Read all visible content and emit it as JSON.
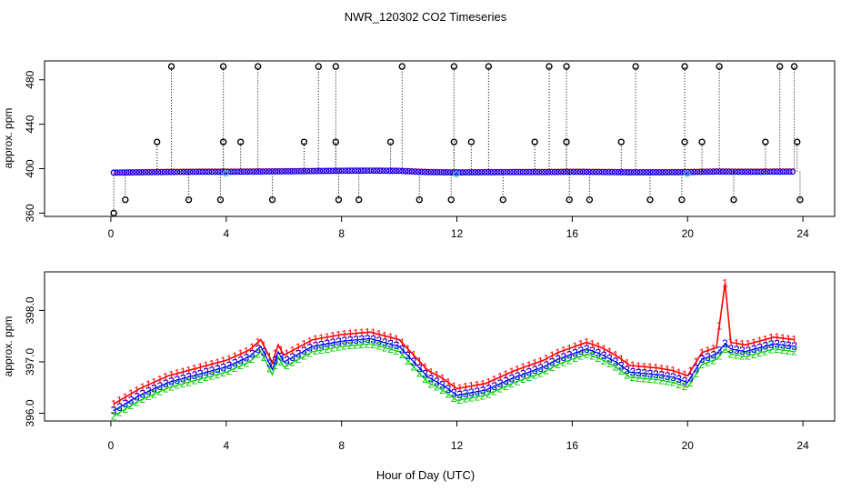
{
  "title": "NWR_120302  CO2 Timeseries",
  "xlabel": "Hour of Day (UTC)",
  "chart_data": [
    {
      "type": "scatter",
      "name": "top-panel",
      "ylabel": "approx. ppm",
      "xlim": [
        -2.3,
        25.1
      ],
      "ylim": [
        357,
        497
      ],
      "xticks": [
        0,
        4,
        8,
        12,
        16,
        20,
        24
      ],
      "yticks": [
        360,
        400,
        440,
        480
      ],
      "baseline_series": [
        {
          "name": "channel 1",
          "color": "#ff0000",
          "points": [
            [
              0.1,
              396.6
            ],
            [
              1.0,
              396.9
            ],
            [
              2.0,
              397.2
            ],
            [
              3.0,
              397.4
            ],
            [
              4.0,
              397.4
            ],
            [
              5.0,
              397.6
            ],
            [
              6.0,
              397.8
            ],
            [
              7.0,
              398.0
            ],
            [
              8.0,
              398.3
            ],
            [
              9.0,
              398.4
            ],
            [
              10.0,
              398.2
            ],
            [
              11.0,
              397.1
            ],
            [
              12.0,
              396.8
            ],
            [
              13.0,
              397.0
            ],
            [
              14.0,
              397.1
            ],
            [
              15.0,
              397.1
            ],
            [
              16.0,
              397.4
            ],
            [
              17.0,
              397.2
            ],
            [
              18.0,
              396.9
            ],
            [
              19.0,
              396.9
            ],
            [
              20.0,
              397.1
            ],
            [
              21.0,
              397.6
            ],
            [
              22.0,
              397.4
            ],
            [
              23.0,
              397.5
            ],
            [
              23.7,
              397.5
            ]
          ]
        },
        {
          "name": "channel 3",
          "color": "#0000ff",
          "points": [
            [
              0.1,
              396.3
            ],
            [
              1.0,
              396.6
            ],
            [
              2.0,
              396.9
            ],
            [
              3.0,
              397.1
            ],
            [
              4.0,
              397.1
            ],
            [
              5.0,
              397.3
            ],
            [
              6.0,
              397.5
            ],
            [
              7.0,
              397.7
            ],
            [
              8.0,
              398.0
            ],
            [
              9.0,
              398.1
            ],
            [
              10.0,
              397.9
            ],
            [
              11.0,
              396.8
            ],
            [
              12.0,
              396.5
            ],
            [
              13.0,
              396.7
            ],
            [
              14.0,
              396.8
            ],
            [
              15.0,
              396.8
            ],
            [
              16.0,
              397.1
            ],
            [
              17.0,
              396.9
            ],
            [
              18.0,
              396.6
            ],
            [
              19.0,
              396.6
            ],
            [
              20.0,
              396.8
            ],
            [
              21.0,
              397.3
            ],
            [
              22.0,
              397.1
            ],
            [
              23.0,
              397.2
            ],
            [
              23.7,
              397.2
            ]
          ]
        }
      ],
      "outliers": [
        {
          "x": 0.1,
          "y": 360
        },
        {
          "x": 0.5,
          "y": 372
        },
        {
          "x": 1.6,
          "y": 424
        },
        {
          "x": 2.1,
          "y": 492
        },
        {
          "x": 2.7,
          "y": 372
        },
        {
          "x": 3.8,
          "y": 372
        },
        {
          "x": 3.9,
          "y": 424
        },
        {
          "x": 3.9,
          "y": 492
        },
        {
          "x": 4.5,
          "y": 424
        },
        {
          "x": 5.1,
          "y": 492
        },
        {
          "x": 5.6,
          "y": 372
        },
        {
          "x": 6.7,
          "y": 424
        },
        {
          "x": 7.2,
          "y": 492
        },
        {
          "x": 7.8,
          "y": 492
        },
        {
          "x": 7.8,
          "y": 424
        },
        {
          "x": 7.9,
          "y": 372
        },
        {
          "x": 8.6,
          "y": 372
        },
        {
          "x": 9.7,
          "y": 424
        },
        {
          "x": 10.1,
          "y": 492
        },
        {
          "x": 10.7,
          "y": 372
        },
        {
          "x": 11.8,
          "y": 372
        },
        {
          "x": 11.9,
          "y": 424
        },
        {
          "x": 11.9,
          "y": 492
        },
        {
          "x": 12.5,
          "y": 424
        },
        {
          "x": 13.1,
          "y": 492
        },
        {
          "x": 13.6,
          "y": 372
        },
        {
          "x": 14.7,
          "y": 424
        },
        {
          "x": 15.2,
          "y": 492
        },
        {
          "x": 15.8,
          "y": 492
        },
        {
          "x": 15.8,
          "y": 424
        },
        {
          "x": 15.9,
          "y": 372
        },
        {
          "x": 16.6,
          "y": 372
        },
        {
          "x": 17.7,
          "y": 424
        },
        {
          "x": 18.2,
          "y": 492
        },
        {
          "x": 18.7,
          "y": 372
        },
        {
          "x": 19.8,
          "y": 372
        },
        {
          "x": 19.9,
          "y": 424
        },
        {
          "x": 19.9,
          "y": 492
        },
        {
          "x": 20.5,
          "y": 424
        },
        {
          "x": 21.1,
          "y": 492
        },
        {
          "x": 21.6,
          "y": 372
        },
        {
          "x": 22.7,
          "y": 424
        },
        {
          "x": 23.2,
          "y": 492
        },
        {
          "x": 23.7,
          "y": 492
        },
        {
          "x": 23.8,
          "y": 424
        },
        {
          "x": 23.9,
          "y": 372
        }
      ]
    },
    {
      "type": "line",
      "name": "bottom-panel",
      "ylabel": "approx. ppm",
      "xlim": [
        -2.3,
        25.1
      ],
      "ylim": [
        395.85,
        398.75
      ],
      "xticks": [
        0,
        4,
        8,
        12,
        16,
        20,
        24
      ],
      "yticks": [
        396.0,
        397.0,
        398.0
      ],
      "series": [
        {
          "name": "1",
          "label": "1",
          "color": "#ff0000",
          "offset": 0.13,
          "x": [
            0.1,
            1.0,
            2.0,
            3.0,
            4.0,
            4.8,
            5.2,
            5.6,
            5.8,
            6.0,
            7.0,
            8.0,
            9.0,
            10.0,
            11.0,
            11.5,
            12.0,
            13.0,
            14.0,
            15.0,
            15.5,
            16.0,
            16.5,
            17.0,
            17.5,
            18.0,
            19.0,
            19.5,
            20.0,
            20.5,
            21.0,
            21.3,
            21.5,
            22.0,
            23.0,
            23.7
          ],
          "y": [
            396.05,
            396.35,
            396.6,
            396.75,
            396.9,
            397.1,
            397.3,
            396.85,
            397.2,
            397.0,
            397.3,
            397.4,
            397.45,
            397.3,
            396.7,
            396.55,
            396.35,
            396.45,
            396.7,
            396.9,
            397.05,
            397.15,
            397.25,
            397.15,
            397.0,
            396.8,
            396.75,
            396.7,
            396.6,
            397.05,
            397.15,
            398.4,
            397.25,
            397.2,
            397.35,
            397.3
          ]
        },
        {
          "name": "2",
          "label": "2",
          "color": "#00cc00",
          "offset": -0.1,
          "x": [
            0.1,
            1.0,
            2.0,
            3.0,
            4.0,
            4.8,
            5.2,
            5.6,
            5.8,
            6.0,
            7.0,
            8.0,
            9.0,
            10.0,
            11.0,
            11.5,
            12.0,
            13.0,
            14.0,
            15.0,
            15.5,
            16.0,
            16.5,
            17.0,
            17.5,
            18.0,
            19.0,
            19.5,
            20.0,
            20.5,
            21.0,
            21.3,
            21.5,
            22.0,
            23.0,
            23.7
          ],
          "y": [
            396.05,
            396.35,
            396.6,
            396.75,
            396.9,
            397.1,
            397.3,
            396.85,
            397.2,
            397.0,
            397.3,
            397.4,
            397.45,
            397.3,
            396.7,
            396.55,
            396.35,
            396.45,
            396.7,
            396.9,
            397.05,
            397.15,
            397.25,
            397.15,
            397.0,
            396.8,
            396.75,
            396.7,
            396.6,
            397.05,
            397.15,
            397.35,
            397.25,
            397.2,
            397.35,
            397.3
          ]
        },
        {
          "name": "3",
          "label": "3",
          "color": "#0000ff",
          "offset": 0.0,
          "x": [
            0.1,
            1.0,
            2.0,
            3.0,
            4.0,
            4.8,
            5.2,
            5.6,
            5.8,
            6.0,
            7.0,
            8.0,
            9.0,
            10.0,
            11.0,
            11.5,
            12.0,
            13.0,
            14.0,
            15.0,
            15.5,
            16.0,
            16.5,
            17.0,
            17.5,
            18.0,
            19.0,
            19.5,
            20.0,
            20.5,
            21.0,
            21.3,
            21.5,
            22.0,
            23.0,
            23.7
          ],
          "y": [
            396.05,
            396.35,
            396.6,
            396.75,
            396.9,
            397.1,
            397.3,
            396.85,
            397.2,
            397.0,
            397.3,
            397.4,
            397.45,
            397.3,
            396.7,
            396.55,
            396.35,
            396.45,
            396.7,
            396.9,
            397.05,
            397.15,
            397.25,
            397.15,
            397.0,
            396.8,
            396.75,
            396.7,
            396.6,
            397.05,
            397.15,
            397.35,
            397.25,
            397.2,
            397.35,
            397.3
          ]
        }
      ]
    }
  ]
}
